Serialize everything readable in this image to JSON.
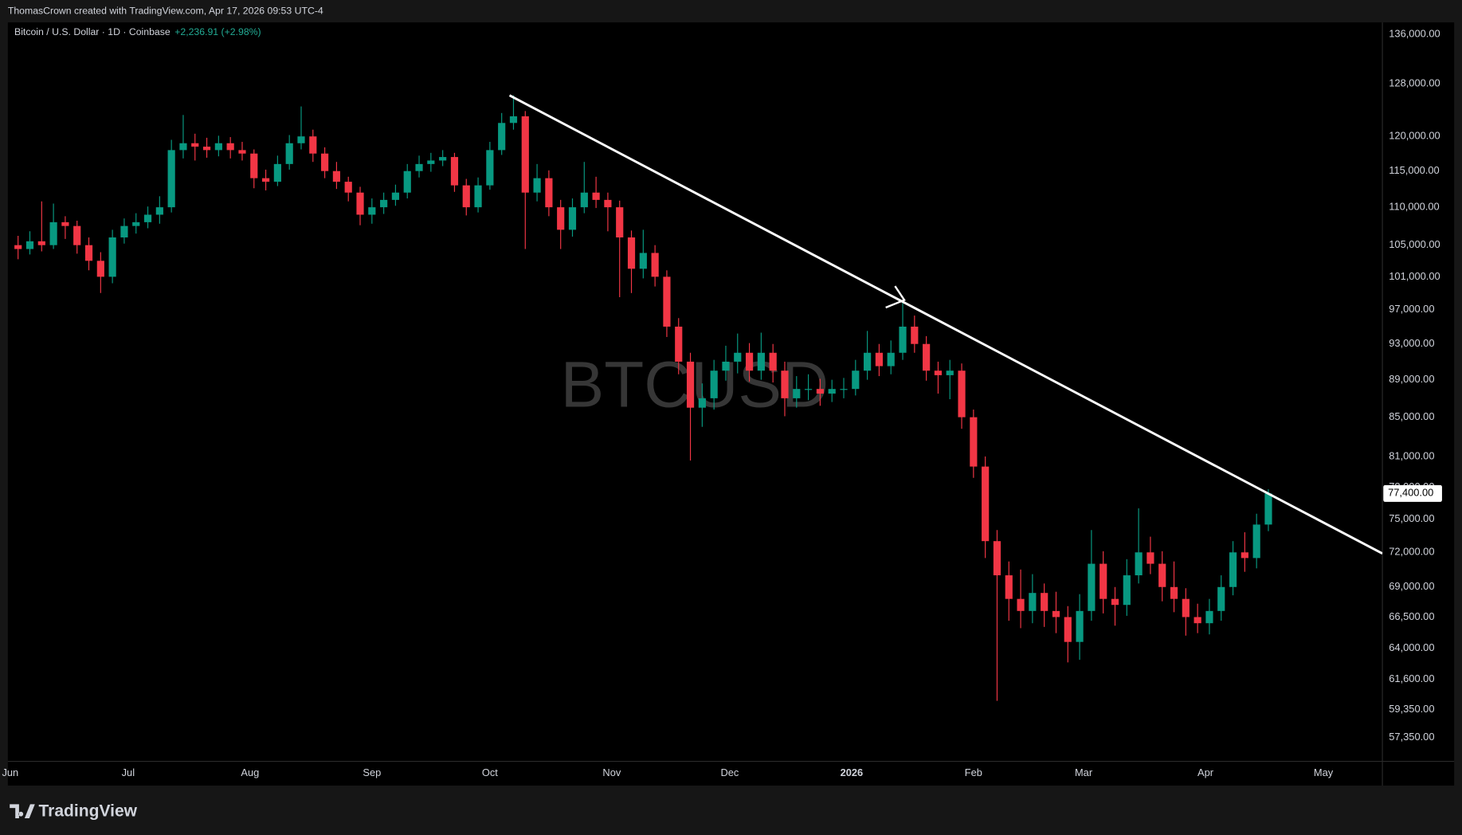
{
  "header": {
    "credit": "ThomasCrown created with TradingView.com, Apr 17, 2026 09:53 UTC-4"
  },
  "footer": {
    "brand": "TradingView"
  },
  "chart_data": {
    "type": "candlestick",
    "title": "Bitcoin / U.S. Dollar · 1D · Coinbase",
    "change": "+2,236.91 (+2.98%)",
    "watermark": "BTCUSD",
    "log_scale": true,
    "grid": false,
    "up_color": "#089981",
    "down_color": "#f23645",
    "xlim": [
      -0.6,
      349
    ],
    "xticks": [
      {
        "value": 0,
        "label": "Jun"
      },
      {
        "value": 30,
        "label": "Jul"
      },
      {
        "value": 61,
        "label": "Aug"
      },
      {
        "value": 92,
        "label": "Sep"
      },
      {
        "value": 122,
        "label": "Oct"
      },
      {
        "value": 153,
        "label": "Nov"
      },
      {
        "value": 183,
        "label": "Dec"
      },
      {
        "value": 214,
        "label": "2026",
        "bold": true
      },
      {
        "value": 245,
        "label": "Feb"
      },
      {
        "value": 273,
        "label": "Mar"
      },
      {
        "value": 304,
        "label": "Apr"
      },
      {
        "value": 334,
        "label": "May"
      }
    ],
    "ylim": [
      55700,
      138040
    ],
    "yticks": [
      {
        "value": 136000,
        "label": "136,000.00"
      },
      {
        "value": 128000,
        "label": "128,000.00"
      },
      {
        "value": 120000,
        "label": "120,000.00"
      },
      {
        "value": 115000,
        "label": "115,000.00"
      },
      {
        "value": 110000,
        "label": "110,000.00"
      },
      {
        "value": 105000,
        "label": "105,000.00"
      },
      {
        "value": 101000,
        "label": "101,000.00"
      },
      {
        "value": 97000,
        "label": "97,000.00"
      },
      {
        "value": 93000,
        "label": "93,000.00"
      },
      {
        "value": 89000,
        "label": "89,000.00"
      },
      {
        "value": 85000,
        "label": "85,000.00"
      },
      {
        "value": 81000,
        "label": "81,000.00"
      },
      {
        "value": 78000,
        "label": "78,000.00"
      },
      {
        "value": 75000,
        "label": "75,000.00"
      },
      {
        "value": 72000,
        "label": "72,000.00"
      },
      {
        "value": 69000,
        "label": "69,000.00"
      },
      {
        "value": 66500,
        "label": "66,500.00"
      },
      {
        "value": 64000,
        "label": "64,000.00"
      },
      {
        "value": 61600,
        "label": "61,600.00"
      },
      {
        "value": 59350,
        "label": "59,350.00"
      },
      {
        "value": 57350,
        "label": "57,350.00"
      }
    ],
    "last_price": {
      "value": 77400,
      "label": "77,400.00"
    },
    "trendline": {
      "x": [
        127,
        349
      ],
      "y": [
        126200,
        71900
      ],
      "color": "#ffffff"
    },
    "x": [
      2,
      5,
      8,
      11,
      14,
      17,
      20,
      23,
      26,
      29,
      32,
      35,
      38,
      41,
      44,
      47,
      50,
      53,
      56,
      59,
      62,
      65,
      68,
      71,
      74,
      77,
      80,
      83,
      86,
      89,
      92,
      95,
      98,
      101,
      104,
      107,
      110,
      113,
      116,
      119,
      122,
      125,
      128,
      131,
      134,
      137,
      140,
      143,
      146,
      149,
      152,
      155,
      158,
      161,
      164,
      167,
      170,
      173,
      176,
      179,
      182,
      185,
      188,
      191,
      194,
      197,
      200,
      203,
      206,
      209,
      212,
      215,
      218,
      221,
      224,
      227,
      230,
      233,
      236,
      239,
      242,
      245,
      248,
      251,
      254,
      257,
      260,
      263,
      266,
      269,
      272,
      275,
      278,
      281,
      284,
      287,
      290,
      293,
      296,
      299,
      302,
      305,
      308,
      311,
      314,
      317,
      320
    ],
    "ohlc": [
      [
        105000,
        106200,
        103200,
        104500
      ],
      [
        104500,
        106800,
        103800,
        105500
      ],
      [
        105500,
        110800,
        104200,
        105000
      ],
      [
        105000,
        110500,
        104500,
        108000
      ],
      [
        108000,
        108800,
        105800,
        107500
      ],
      [
        107500,
        108200,
        103900,
        105000
      ],
      [
        105000,
        106000,
        101800,
        103000
      ],
      [
        103000,
        104100,
        99000,
        101000
      ],
      [
        101000,
        107000,
        100200,
        106000
      ],
      [
        106000,
        108500,
        105200,
        107500
      ],
      [
        107500,
        109200,
        106500,
        108000
      ],
      [
        108000,
        110100,
        107200,
        109000
      ],
      [
        109000,
        111500,
        107800,
        110000
      ],
      [
        110000,
        119500,
        109300,
        118000
      ],
      [
        118000,
        123200,
        116800,
        119000
      ],
      [
        119000,
        120400,
        116500,
        118500
      ],
      [
        118500,
        119800,
        116900,
        118000
      ],
      [
        118000,
        120100,
        117100,
        119000
      ],
      [
        119000,
        119900,
        116800,
        118000
      ],
      [
        118000,
        119200,
        116500,
        117500
      ],
      [
        117500,
        118100,
        112600,
        114000
      ],
      [
        114000,
        115200,
        112300,
        113500
      ],
      [
        113500,
        117200,
        112900,
        116000
      ],
      [
        116000,
        120200,
        115200,
        119000
      ],
      [
        119000,
        124500,
        118100,
        120000
      ],
      [
        120000,
        121000,
        116300,
        117500
      ],
      [
        117500,
        118400,
        114000,
        115000
      ],
      [
        115000,
        116300,
        112500,
        113500
      ],
      [
        113500,
        114200,
        110800,
        112000
      ],
      [
        112000,
        112800,
        107600,
        109000
      ],
      [
        109000,
        111200,
        107800,
        110000
      ],
      [
        110000,
        112000,
        109100,
        111000
      ],
      [
        111000,
        113100,
        110200,
        112000
      ],
      [
        112000,
        116000,
        111200,
        115000
      ],
      [
        115000,
        117200,
        114100,
        116000
      ],
      [
        116000,
        117600,
        114900,
        116500
      ],
      [
        116500,
        118000,
        115700,
        117000
      ],
      [
        117000,
        117600,
        112100,
        113000
      ],
      [
        113000,
        113900,
        108900,
        110000
      ],
      [
        110000,
        114100,
        109300,
        113000
      ],
      [
        113000,
        119200,
        112400,
        118000
      ],
      [
        118000,
        123500,
        117300,
        122000
      ],
      [
        122000,
        126200,
        121000,
        123000
      ],
      [
        123000,
        123800,
        104500,
        112000
      ],
      [
        112000,
        116000,
        110800,
        114000
      ],
      [
        114000,
        115100,
        108800,
        110000
      ],
      [
        110000,
        111000,
        104500,
        107000
      ],
      [
        107000,
        111200,
        106100,
        110000
      ],
      [
        110000,
        116300,
        109200,
        112000
      ],
      [
        112000,
        114200,
        109900,
        111000
      ],
      [
        111000,
        112000,
        106800,
        110000
      ],
      [
        110000,
        110900,
        98500,
        106000
      ],
      [
        106000,
        106900,
        99000,
        102000
      ],
      [
        102000,
        107000,
        100800,
        104000
      ],
      [
        104000,
        105000,
        99800,
        101000
      ],
      [
        101000,
        101800,
        93800,
        95000
      ],
      [
        95000,
        96000,
        89600,
        91000
      ],
      [
        91000,
        92000,
        80600,
        86000
      ],
      [
        86000,
        88600,
        84000,
        87000
      ],
      [
        87000,
        91200,
        85800,
        90000
      ],
      [
        90000,
        92800,
        88900,
        91000
      ],
      [
        91000,
        94200,
        89700,
        92000
      ],
      [
        92000,
        93100,
        88800,
        90000
      ],
      [
        90000,
        94300,
        89000,
        92000
      ],
      [
        92000,
        93000,
        88700,
        90000
      ],
      [
        90000,
        91000,
        85100,
        87000
      ],
      [
        87000,
        89400,
        86000,
        88000
      ],
      [
        88000,
        89600,
        86800,
        88000
      ],
      [
        88000,
        89100,
        86200,
        87500
      ],
      [
        87500,
        89000,
        86600,
        88000
      ],
      [
        88000,
        89200,
        87000,
        88000
      ],
      [
        88000,
        91200,
        87300,
        90000
      ],
      [
        90000,
        94500,
        89000,
        92000
      ],
      [
        92000,
        93000,
        89400,
        90500
      ],
      [
        90500,
        93400,
        89600,
        92000
      ],
      [
        92000,
        97800,
        91200,
        95000
      ],
      [
        95000,
        96300,
        92000,
        93000
      ],
      [
        93000,
        93900,
        88900,
        90000
      ],
      [
        90000,
        91000,
        87500,
        89500
      ],
      [
        89500,
        91200,
        86900,
        90000
      ],
      [
        90000,
        90800,
        83800,
        85000
      ],
      [
        85000,
        85800,
        78900,
        80000
      ],
      [
        80000,
        81000,
        71500,
        73000
      ],
      [
        73000,
        74000,
        60000,
        70000
      ],
      [
        70000,
        71200,
        66200,
        68000
      ],
      [
        68000,
        70500,
        65600,
        67000
      ],
      [
        67000,
        70100,
        66000,
        68500
      ],
      [
        68500,
        69300,
        65700,
        67000
      ],
      [
        67000,
        68600,
        65200,
        66500
      ],
      [
        66500,
        67400,
        62900,
        64500
      ],
      [
        64500,
        68400,
        63100,
        67000
      ],
      [
        67000,
        74000,
        66200,
        71000
      ],
      [
        71000,
        72100,
        66800,
        68000
      ],
      [
        68000,
        69000,
        65800,
        67500
      ],
      [
        67500,
        71400,
        66600,
        70000
      ],
      [
        70000,
        76000,
        69300,
        72000
      ],
      [
        72000,
        73400,
        70100,
        71000
      ],
      [
        71000,
        72100,
        67800,
        69000
      ],
      [
        69000,
        71200,
        66900,
        68000
      ],
      [
        68000,
        68900,
        65000,
        66500
      ],
      [
        66500,
        67600,
        65200,
        66000
      ],
      [
        66000,
        68000,
        65100,
        67000
      ],
      [
        67000,
        70000,
        66200,
        69000
      ],
      [
        69000,
        73000,
        68300,
        72000
      ],
      [
        72000,
        73800,
        70300,
        71500
      ],
      [
        71500,
        75500,
        70600,
        74500
      ],
      [
        74500,
        77800,
        73900,
        77400
      ]
    ]
  }
}
